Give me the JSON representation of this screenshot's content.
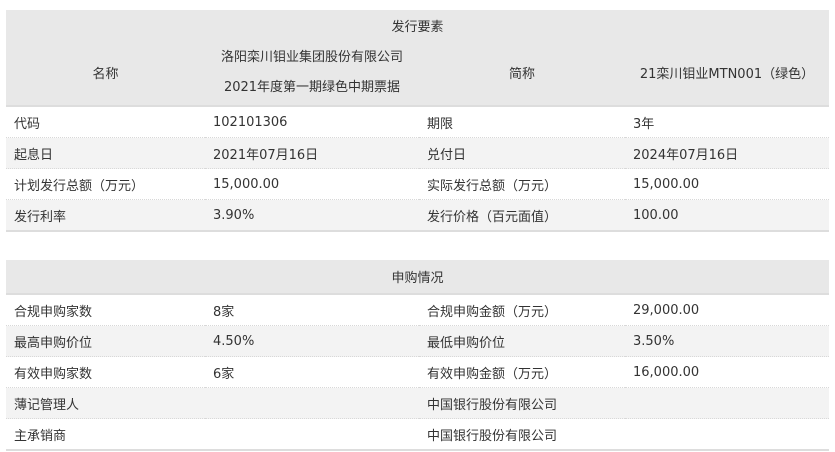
{
  "issue": {
    "title": "发行要素",
    "name_label": "名称",
    "name_value": [
      "洛阳栾川钼业集团股份有限公司",
      "2021年度第一期绿色中期票据"
    ],
    "short_label": "简称",
    "short_value": "21栾川钼业MTN001（绿色）",
    "rows": [
      [
        "代码",
        "102101306",
        "期限",
        "3年"
      ],
      [
        "起息日",
        "2021年07月16日",
        "兑付日",
        "2024年07月16日"
      ],
      [
        "计划发行总额（万元）",
        "15,000.00",
        "实际发行总额（万元）",
        "15,000.00"
      ],
      [
        "发行利率",
        "3.90%",
        "发行价格（百元面值）",
        "100.00"
      ]
    ]
  },
  "subscription": {
    "title": "申购情况",
    "rows": [
      [
        "合规申购家数",
        "8家",
        "合规申购金额（万元）",
        "29,000.00"
      ],
      [
        "最高申购价位",
        "4.50%",
        "最低申购价位",
        "3.50%"
      ],
      [
        "有效申购家数",
        "6家",
        "有效申购金额（万元）",
        "16,000.00"
      ],
      [
        "薄记管理人",
        "",
        "中国银行股份有限公司",
        ""
      ],
      [
        "主承销商",
        "",
        "中国银行股份有限公司",
        ""
      ]
    ]
  }
}
